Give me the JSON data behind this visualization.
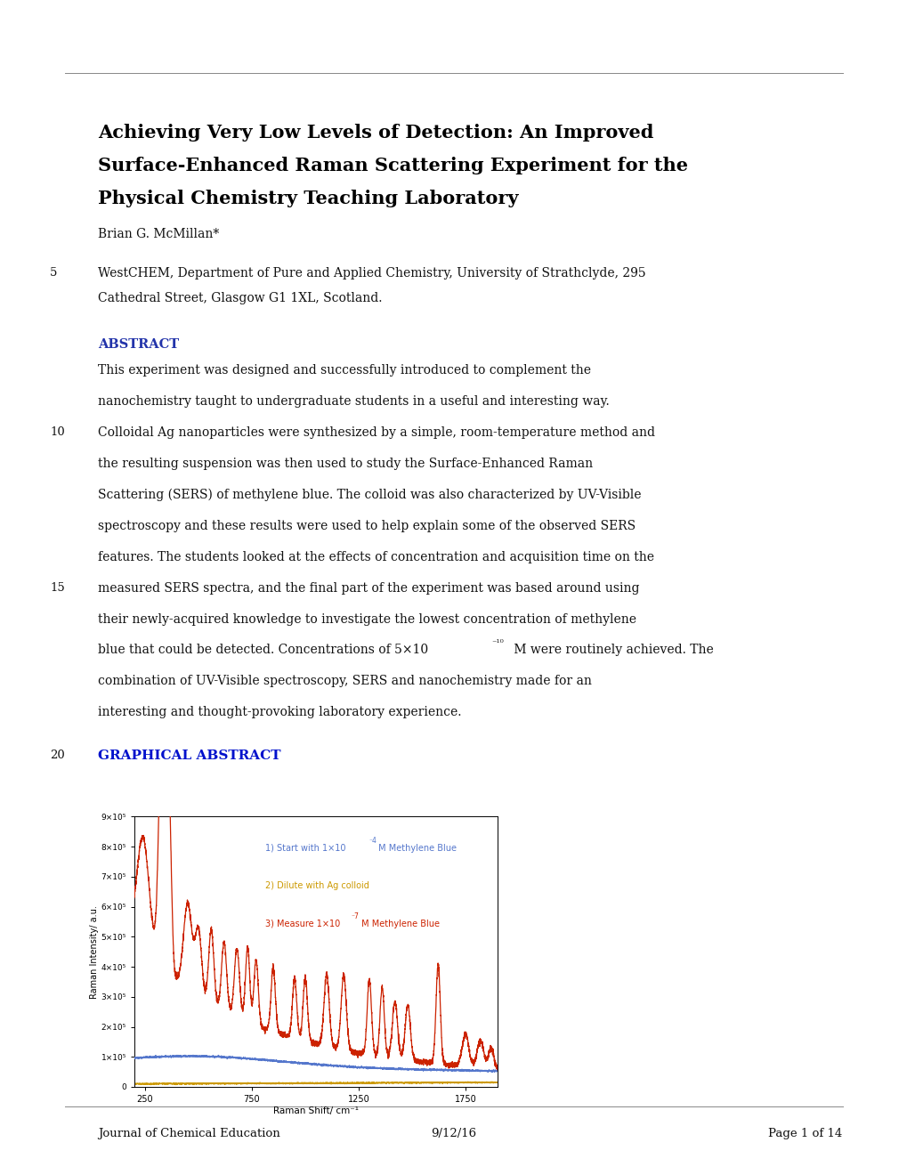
{
  "page_bg": "#ffffff",
  "top_rule_y": 0.938,
  "bottom_rule_y": 0.058,
  "title_line1": "Achieving Very Low Levels of Detection: An Improved",
  "title_line2": "Surface-Enhanced Raman Scattering Experiment for the",
  "title_line3": "Physical Chemistry Teaching Laboratory",
  "author": "Brian G. McMillan*",
  "line5": "WestCHEM, Department of Pure and Applied Chemistry, University of Strathclyde, 295",
  "line5b": "Cathedral Street, Glasgow G1 1XL, Scotland.",
  "abstract_label": "ABSTRACT",
  "graphical_abstract_label": "GRAPHICAL ABSTRACT",
  "line_number_5": "5",
  "line_number_10": "10",
  "line_number_15": "15",
  "line_number_20": "20",
  "footer_journal": "Journal of Chemical Education",
  "footer_date": "9/12/16",
  "footer_page": "Page 1 of 14",
  "blue_color": "#5577cc",
  "orange_color": "#cc9900",
  "red_color": "#cc2200",
  "abstract_color": "#2233aa",
  "graphical_abstract_color": "#0011cc",
  "title_color": "#000000",
  "text_color": "#111111",
  "ylabel": "Raman Intensity/ a.u.",
  "xlabel": "Raman Shift/ cm⁻¹",
  "xmin": 200,
  "xmax": 1900,
  "ymin": 0,
  "ymax": 900000.0,
  "abstract_lines": [
    "This experiment was designed and successfully introduced to complement the",
    "nanochemistry taught to undergraduate students in a useful and interesting way.",
    "Colloidal Ag nanoparticles were synthesized by a simple, room-temperature method and",
    "the resulting suspension was then used to study the Surface-Enhanced Raman",
    "Scattering (SERS) of methylene blue. The colloid was also characterized by UV-Visible",
    "spectroscopy and these results were used to help explain some of the observed SERS",
    "features. The students looked at the effects of concentration and acquisition time on the",
    "measured SERS spectra, and the final part of the experiment was based around using",
    "their newly-acquired knowledge to investigate the lowest concentration of methylene"
  ],
  "line_num_at": {
    "2": "10",
    "7": "15"
  }
}
